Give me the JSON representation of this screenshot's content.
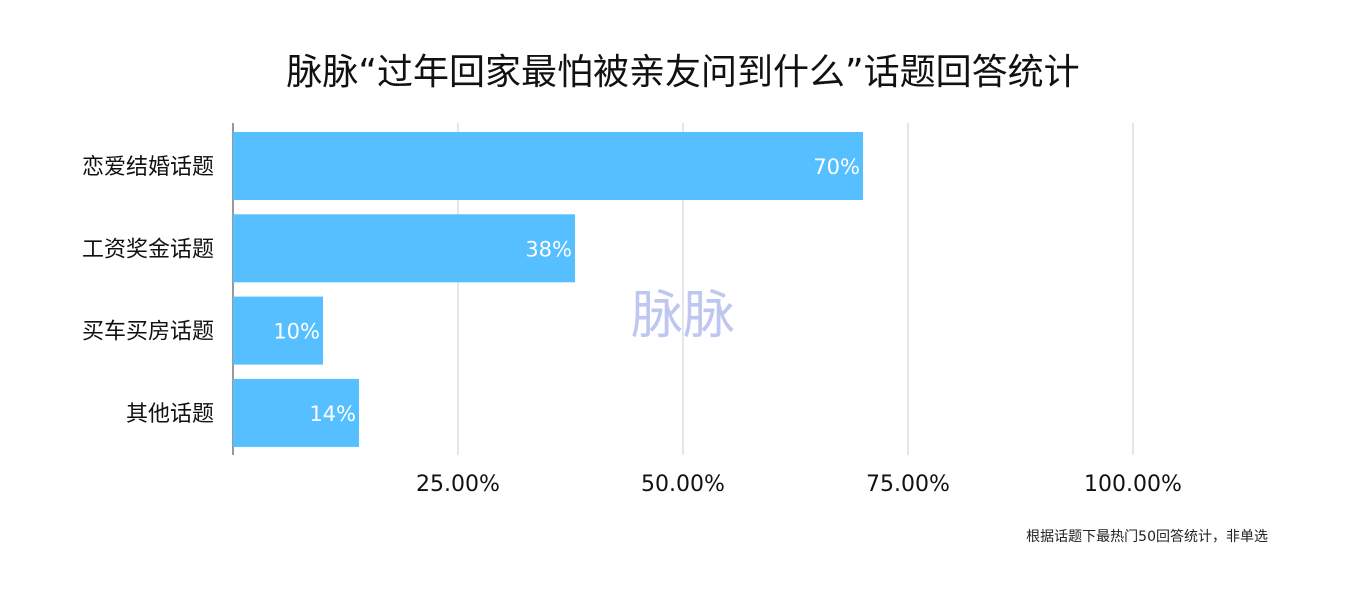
{
  "chart_data": {
    "type": "bar",
    "orientation": "horizontal",
    "title": "脉脉“过年回家最怕被亲友问到什么”话题回答统计",
    "categories": [
      "恋爱结婚话题",
      "工资奖金话题",
      "买车买房话题",
      "其他话题"
    ],
    "values": [
      70,
      38,
      10,
      14
    ],
    "data_labels": [
      "70%",
      "38%",
      "10%",
      "14%"
    ],
    "xlim": [
      0,
      100
    ],
    "xticks": [
      25,
      50,
      75,
      100
    ],
    "xtick_labels": [
      "25.00%",
      "50.00%",
      "75.00%",
      "100.00%"
    ],
    "grid": true,
    "bar_color": "#55bfff",
    "watermark": "脉脉",
    "footnote": "根据话题下最热门50回答统计，非单选"
  }
}
